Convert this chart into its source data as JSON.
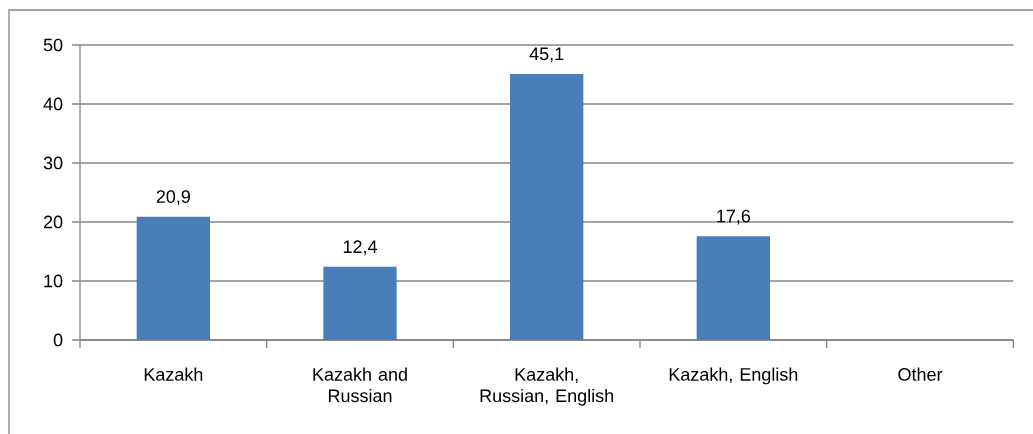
{
  "chart_data": {
    "type": "bar",
    "categories": [
      "Kazakh",
      "Kazakh and Russian",
      "Kazakh, Russian, English",
      "Kazakh, English",
      "Other"
    ],
    "values": [
      20.9,
      12.4,
      45.1,
      17.6,
      null
    ],
    "value_labels": [
      "20,9",
      "12,4",
      "45,1",
      "17,6",
      null
    ],
    "color": "#4a7ebb",
    "ylim": [
      0,
      50
    ],
    "yticks": [
      0,
      10,
      20,
      30,
      40,
      50
    ],
    "grid": "y"
  }
}
